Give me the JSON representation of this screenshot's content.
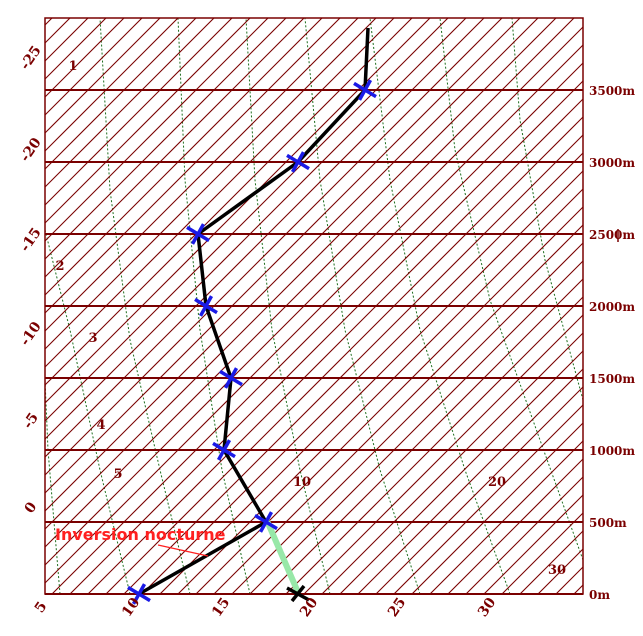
{
  "diagram": {
    "temp_labels": [
      "5",
      "10",
      "15",
      "20",
      "25",
      "30"
    ],
    "left_labels": [
      "0",
      "-5",
      "-10",
      "-15",
      "-20",
      "-25"
    ],
    "height_labels": [
      "0m",
      "500m",
      "1000m",
      "1500m",
      "2000m",
      "2500m",
      "3000m",
      "3500m"
    ],
    "mixing_ratio_labels": [
      "10",
      "20",
      "30"
    ],
    "adiabat_labels": [
      "1",
      "2",
      "3",
      "4",
      "5"
    ],
    "annotation": "Inversion nocturne"
  },
  "sounding": {
    "points": [
      {
        "height_m": 0,
        "temp_c": 10
      },
      {
        "height_m": 500,
        "temp_c": 17
      },
      {
        "height_m": 1000,
        "temp_c": 12
      },
      {
        "height_m": 1500,
        "temp_c": 10
      },
      {
        "height_m": 2000,
        "temp_c": 5
      },
      {
        "height_m": 2500,
        "temp_c": 2
      },
      {
        "height_m": 3000,
        "temp_c": 5
      },
      {
        "height_m": 3500,
        "temp_c": 5
      }
    ],
    "surface_day_temp_c": 19,
    "colors": {
      "profile": "#000000",
      "marker": "#1a1ae6",
      "inversion_segment": "#98e8a8",
      "isotherm": "#7a0000",
      "isobar": "#7a0000",
      "guide": "#1e6e1e",
      "annotation": "#ff2020"
    }
  }
}
